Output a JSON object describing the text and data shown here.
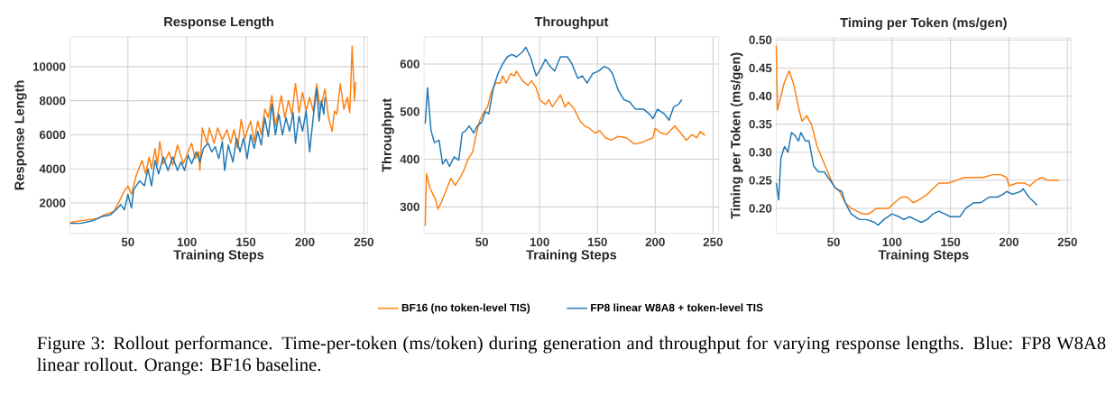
{
  "chart_data": [
    {
      "type": "line",
      "title": "Response Length",
      "xlabel": "Training Steps",
      "ylabel": "Response Length",
      "xlim": [
        1,
        253
      ],
      "ylim": [
        200,
        11750
      ],
      "xticks": [
        50,
        100,
        150,
        200,
        250
      ],
      "yticks": [
        2000,
        4000,
        6000,
        8000,
        10000
      ],
      "grid": true,
      "series": [
        {
          "color": "#ff7f0e",
          "x": [
            1,
            10,
            20,
            25,
            30,
            38,
            42,
            47,
            50,
            53,
            57,
            62,
            65,
            68,
            70,
            73,
            75,
            77,
            80,
            85,
            88,
            92,
            97,
            101,
            104,
            107,
            110,
            111,
            113,
            117,
            119,
            123,
            126,
            130,
            134,
            137,
            140,
            143,
            146,
            149,
            154,
            157,
            160,
            163,
            166,
            169,
            172,
            175,
            180,
            183,
            186,
            189,
            192,
            195,
            198,
            201,
            204,
            207,
            210,
            213,
            217,
            220,
            223,
            225,
            227,
            230,
            233,
            236,
            238,
            240,
            242,
            243
          ],
          "values": [
            850,
            950,
            1050,
            1100,
            1300,
            1500,
            2000,
            2700,
            3000,
            2500,
            3600,
            4500,
            3700,
            4700,
            4000,
            5200,
            4200,
            5600,
            4300,
            5000,
            4200,
            5400,
            4300,
            5000,
            5500,
            4600,
            5000,
            3900,
            6400,
            5500,
            6400,
            5500,
            6400,
            5700,
            6300,
            5500,
            6300,
            5200,
            6900,
            5800,
            6800,
            5600,
            6800,
            6000,
            7500,
            7000,
            8300,
            6500,
            8300,
            7000,
            8000,
            7200,
            9000,
            7300,
            8500,
            7400,
            8200,
            7400,
            9000,
            7500,
            8700,
            7000,
            6200,
            7400,
            7200,
            9000,
            7500,
            8200,
            7300,
            11200,
            8000,
            9100
          ]
        },
        {
          "color": "#1f77b4",
          "x": [
            1,
            10,
            20,
            28,
            35,
            40,
            44,
            47,
            50,
            53,
            55,
            60,
            64,
            67,
            70,
            73,
            76,
            80,
            84,
            88,
            92,
            95,
            98,
            101,
            104,
            108,
            111,
            114,
            118,
            121,
            124,
            127,
            130,
            132,
            135,
            139,
            142,
            145,
            148,
            151,
            154,
            157,
            160,
            163,
            166,
            169,
            172,
            175,
            178,
            181,
            184,
            187,
            190,
            192,
            195,
            198,
            201,
            204,
            207,
            210,
            212,
            214,
            216,
            217
          ],
          "values": [
            800,
            800,
            950,
            1200,
            1300,
            1600,
            1900,
            1600,
            2500,
            1700,
            2800,
            3300,
            3000,
            4000,
            3000,
            4500,
            3700,
            4700,
            3900,
            4700,
            3900,
            4400,
            3900,
            4800,
            4300,
            5000,
            4400,
            5200,
            5500,
            5000,
            5300,
            4600,
            5600,
            3900,
            5400,
            4400,
            5800,
            5000,
            5800,
            4600,
            6000,
            5200,
            6200,
            5400,
            7000,
            5900,
            7800,
            6000,
            7200,
            6000,
            7000,
            6200,
            7300,
            5500,
            7100,
            6200,
            7400,
            5000,
            7000,
            8700,
            6800,
            8000,
            7200,
            8200
          ]
        }
      ]
    },
    {
      "type": "line",
      "title": "Throughput",
      "xlabel": "Training Steps",
      "ylabel": "Throughput",
      "xlim": [
        0,
        255
      ],
      "ylim": [
        244,
        657
      ],
      "xticks": [
        50,
        100,
        150,
        200,
        250
      ],
      "yticks": [
        300,
        400,
        500,
        600
      ],
      "grid": true,
      "legend": "bottom",
      "annotations": [
        "Figure 3: Rollout performance. Time-per-token (ms/token) during generation and throughput for varying response lengths. Blue: FP8 W8A8 linear rollout. Orange: BF16 baseline."
      ],
      "series": [
        {
          "name": "BF16 (no token-level TIS)",
          "color": "#ff7f0e",
          "x": [
            1,
            2,
            5,
            10,
            12,
            15,
            20,
            23,
            27,
            32,
            35,
            38,
            42,
            45,
            48,
            52,
            55,
            58,
            62,
            66,
            68,
            71,
            75,
            78,
            80,
            85,
            90,
            93,
            97,
            100,
            105,
            108,
            111,
            118,
            122,
            125,
            130,
            135,
            139,
            143,
            148,
            152,
            157,
            162,
            168,
            175,
            182,
            188,
            193,
            198,
            200,
            205,
            210,
            217,
            222,
            227,
            232,
            236,
            239,
            243
          ],
          "values": [
            260,
            370,
            340,
            315,
            295,
            310,
            340,
            360,
            345,
            365,
            380,
            400,
            415,
            450,
            480,
            500,
            510,
            540,
            560,
            560,
            575,
            560,
            580,
            575,
            585,
            565,
            555,
            565,
            550,
            525,
            515,
            525,
            510,
            535,
            510,
            520,
            505,
            480,
            470,
            465,
            455,
            460,
            445,
            440,
            448,
            445,
            432,
            435,
            440,
            445,
            465,
            455,
            452,
            470,
            455,
            440,
            452,
            445,
            458,
            450
          ]
        },
        {
          "name": "FP8 linear W8A8 + token-level TIS",
          "color": "#1f77b4",
          "x": [
            1,
            3,
            6,
            9,
            13,
            16,
            19,
            22,
            26,
            30,
            33,
            36,
            39,
            43,
            46,
            50,
            53,
            56,
            60,
            64,
            68,
            72,
            76,
            80,
            85,
            88,
            92,
            97,
            101,
            105,
            109,
            113,
            118,
            124,
            128,
            133,
            137,
            141,
            146,
            151,
            156,
            160,
            163,
            168,
            173,
            178,
            183,
            190,
            195,
            198,
            202,
            208,
            212,
            216,
            220,
            223
          ],
          "values": [
            475,
            550,
            460,
            435,
            440,
            390,
            400,
            385,
            405,
            398,
            455,
            460,
            470,
            455,
            470,
            478,
            500,
            495,
            550,
            580,
            600,
            615,
            620,
            615,
            625,
            635,
            615,
            575,
            590,
            610,
            595,
            585,
            615,
            615,
            600,
            570,
            575,
            560,
            580,
            585,
            595,
            590,
            580,
            545,
            525,
            520,
            505,
            505,
            495,
            485,
            505,
            495,
            482,
            510,
            515,
            525
          ]
        }
      ]
    },
    {
      "type": "line",
      "title": "Timing per Token (ms/gen)",
      "xlabel": "Training Steps",
      "ylabel": "Timing per Token (ms/gen)",
      "xlim": [
        1,
        253
      ],
      "ylim": [
        0.155,
        0.504
      ],
      "xticks": [
        50,
        100,
        150,
        200,
        250
      ],
      "yticks": [
        {
          "value": 0.2,
          "label": "0.20"
        },
        {
          "value": 0.25,
          "label": "0.25"
        },
        {
          "value": 0.3,
          "label": "0.30"
        },
        {
          "value": 0.35,
          "label": "0.35"
        },
        {
          "value": 0.4,
          "label": "0.40"
        },
        {
          "value": 0.45,
          "label": "0.45"
        },
        {
          "value": 0.5,
          "label": "0.50"
        }
      ],
      "grid": true,
      "series": [
        {
          "color": "#ff7f0e",
          "x": [
            1,
            2,
            5,
            8,
            12,
            16,
            20,
            23,
            27,
            31,
            36,
            40,
            45,
            50,
            55,
            60,
            65,
            70,
            75,
            80,
            87,
            93,
            97,
            102,
            108,
            113,
            118,
            123,
            130,
            135,
            140,
            148,
            155,
            162,
            170,
            178,
            186,
            193,
            198,
            200,
            207,
            213,
            218,
            223,
            228,
            233,
            238,
            243
          ],
          "values": [
            0.49,
            0.375,
            0.4,
            0.425,
            0.445,
            0.42,
            0.38,
            0.355,
            0.365,
            0.35,
            0.31,
            0.29,
            0.265,
            0.24,
            0.23,
            0.21,
            0.2,
            0.195,
            0.19,
            0.19,
            0.2,
            0.2,
            0.2,
            0.21,
            0.22,
            0.22,
            0.21,
            0.215,
            0.225,
            0.235,
            0.245,
            0.245,
            0.25,
            0.255,
            0.255,
            0.255,
            0.26,
            0.26,
            0.255,
            0.24,
            0.245,
            0.245,
            0.24,
            0.25,
            0.255,
            0.25,
            0.25,
            0.25
          ]
        },
        {
          "color": "#1f77b4",
          "x": [
            1,
            3,
            5,
            8,
            11,
            14,
            17,
            20,
            22,
            26,
            29,
            33,
            37,
            42,
            47,
            52,
            57,
            60,
            65,
            72,
            78,
            85,
            88,
            93,
            100,
            106,
            110,
            115,
            120,
            125,
            130,
            135,
            140,
            145,
            150,
            158,
            163,
            170,
            176,
            183,
            190,
            195,
            198,
            203,
            210,
            212,
            217,
            222,
            224
          ],
          "values": [
            0.245,
            0.215,
            0.29,
            0.31,
            0.3,
            0.335,
            0.33,
            0.32,
            0.335,
            0.32,
            0.32,
            0.275,
            0.265,
            0.265,
            0.25,
            0.235,
            0.23,
            0.21,
            0.19,
            0.18,
            0.18,
            0.175,
            0.17,
            0.18,
            0.19,
            0.185,
            0.18,
            0.185,
            0.18,
            0.175,
            0.18,
            0.19,
            0.195,
            0.19,
            0.185,
            0.185,
            0.2,
            0.21,
            0.21,
            0.22,
            0.22,
            0.225,
            0.23,
            0.225,
            0.23,
            0.235,
            0.22,
            0.21,
            0.205
          ]
        }
      ]
    }
  ]
}
